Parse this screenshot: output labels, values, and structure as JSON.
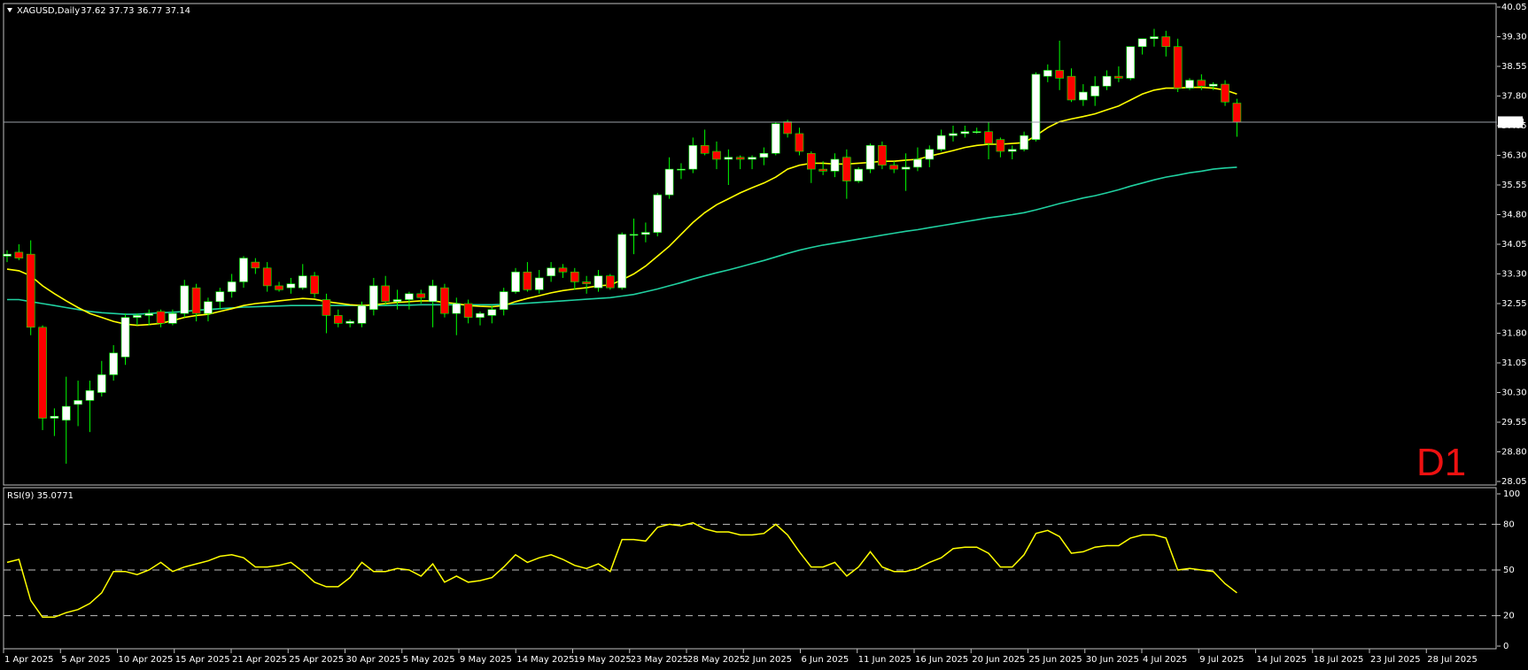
{
  "chart_data": [
    {
      "type": "candlestick",
      "symbol": "XAGUSD,Daily",
      "ohlc_header": "37.62 37.73 36.77 37.14",
      "timeframe_label": "D1",
      "last_price_label": "37.14",
      "y_ticks": [
        "40.05",
        "39.30",
        "38.55",
        "37.80",
        "37.05",
        "36.30",
        "35.55",
        "34.80",
        "34.05",
        "33.30",
        "32.55",
        "31.80",
        "31.05",
        "30.30",
        "29.55",
        "28.80",
        "28.05"
      ],
      "ylim": [
        28.05,
        40.05
      ],
      "x_labels": [
        "1 Apr 2025",
        "5 Apr 2025",
        "10 Apr 2025",
        "15 Apr 2025",
        "21 Apr 2025",
        "25 Apr 2025",
        "30 Apr 2025",
        "5 May 2025",
        "9 May 2025",
        "14 May 2025",
        "19 May 2025",
        "23 May 2025",
        "28 May 2025",
        "2 Jun 2025",
        "6 Jun 2025",
        "11 Jun 2025",
        "16 Jun 2025",
        "20 Jun 2025",
        "25 Jun 2025",
        "30 Jun 2025",
        "4 Jul 2025",
        "9 Jul 2025",
        "14 Jul 2025",
        "18 Jul 2025",
        "23 Jul 2025",
        "28 Jul 2025"
      ],
      "bull_color": "#ffffff",
      "bear_color": "#ff0000",
      "wick_color": "#00ff00",
      "candles": [
        [
          33.75,
          33.9,
          33.6,
          33.8
        ],
        [
          33.85,
          34.05,
          33.65,
          33.7
        ],
        [
          33.8,
          34.15,
          31.75,
          31.95
        ],
        [
          31.95,
          32.0,
          29.35,
          29.65
        ],
        [
          29.65,
          29.9,
          29.2,
          29.7
        ],
        [
          29.6,
          30.7,
          28.5,
          29.95
        ],
        [
          30.0,
          30.6,
          29.45,
          30.1
        ],
        [
          30.1,
          30.6,
          29.3,
          30.35
        ],
        [
          30.3,
          31.1,
          30.2,
          30.75
        ],
        [
          30.75,
          31.5,
          30.6,
          31.3
        ],
        [
          31.2,
          32.3,
          31.0,
          32.2
        ],
        [
          32.2,
          32.3,
          32.0,
          32.25
        ],
        [
          32.25,
          32.4,
          32.0,
          32.3
        ],
        [
          32.35,
          32.4,
          31.95,
          32.05
        ],
        [
          32.05,
          32.4,
          32.0,
          32.3
        ],
        [
          32.3,
          33.15,
          32.2,
          33.0
        ],
        [
          32.95,
          33.05,
          32.1,
          32.3
        ],
        [
          32.3,
          32.7,
          32.1,
          32.6
        ],
        [
          32.6,
          32.95,
          32.4,
          32.85
        ],
        [
          32.85,
          33.3,
          32.7,
          33.1
        ],
        [
          33.1,
          33.75,
          32.95,
          33.7
        ],
        [
          33.6,
          33.7,
          33.3,
          33.45
        ],
        [
          33.45,
          33.6,
          32.85,
          33.0
        ],
        [
          33.0,
          33.1,
          32.85,
          32.9
        ],
        [
          32.95,
          33.2,
          32.8,
          33.05
        ],
        [
          32.95,
          33.55,
          32.9,
          33.25
        ],
        [
          33.25,
          33.35,
          32.7,
          32.8
        ],
        [
          32.65,
          32.8,
          31.8,
          32.25
        ],
        [
          32.25,
          32.4,
          31.95,
          32.05
        ],
        [
          32.05,
          32.15,
          31.95,
          32.1
        ],
        [
          32.05,
          32.6,
          31.95,
          32.5
        ],
        [
          32.4,
          33.2,
          32.25,
          33.0
        ],
        [
          33.0,
          33.25,
          32.5,
          32.6
        ],
        [
          32.6,
          32.9,
          32.4,
          32.65
        ],
        [
          32.65,
          32.85,
          32.4,
          32.8
        ],
        [
          32.8,
          32.9,
          32.55,
          32.7
        ],
        [
          32.6,
          33.15,
          31.95,
          33.0
        ],
        [
          32.95,
          33.05,
          32.2,
          32.3
        ],
        [
          32.3,
          32.7,
          31.75,
          32.55
        ],
        [
          32.55,
          32.65,
          32.05,
          32.2
        ],
        [
          32.2,
          32.35,
          32.0,
          32.3
        ],
        [
          32.25,
          32.5,
          32.05,
          32.4
        ],
        [
          32.4,
          32.95,
          32.25,
          32.85
        ],
        [
          32.85,
          33.45,
          32.8,
          33.35
        ],
        [
          33.35,
          33.6,
          32.85,
          32.9
        ],
        [
          32.9,
          33.4,
          32.8,
          33.2
        ],
        [
          33.25,
          33.6,
          33.1,
          33.45
        ],
        [
          33.45,
          33.55,
          33.2,
          33.35
        ],
        [
          33.35,
          33.45,
          32.9,
          33.1
        ],
        [
          33.1,
          33.25,
          32.8,
          33.05
        ],
        [
          32.95,
          33.4,
          32.85,
          33.25
        ],
        [
          33.25,
          33.3,
          32.9,
          32.95
        ],
        [
          32.95,
          34.35,
          32.9,
          34.3
        ],
        [
          34.3,
          34.7,
          33.8,
          34.3
        ],
        [
          34.3,
          34.6,
          34.1,
          34.35
        ],
        [
          34.35,
          35.35,
          34.25,
          35.3
        ],
        [
          35.3,
          36.25,
          35.2,
          35.95
        ],
        [
          35.95,
          36.1,
          35.7,
          35.95
        ],
        [
          35.95,
          36.75,
          35.85,
          36.55
        ],
        [
          36.55,
          36.95,
          36.3,
          36.35
        ],
        [
          36.4,
          36.65,
          35.95,
          36.2
        ],
        [
          36.2,
          36.45,
          35.55,
          36.25
        ],
        [
          36.25,
          36.3,
          35.95,
          36.2
        ],
        [
          36.2,
          36.3,
          35.95,
          36.25
        ],
        [
          36.25,
          36.5,
          36.05,
          36.35
        ],
        [
          36.35,
          37.15,
          36.3,
          37.1
        ],
        [
          37.15,
          37.2,
          36.75,
          36.85
        ],
        [
          36.85,
          37.0,
          36.3,
          36.4
        ],
        [
          36.35,
          36.4,
          35.6,
          35.95
        ],
        [
          35.95,
          36.15,
          35.8,
          35.9
        ],
        [
          35.9,
          36.35,
          35.75,
          36.2
        ],
        [
          36.25,
          36.45,
          35.2,
          35.65
        ],
        [
          35.65,
          36.0,
          35.6,
          35.95
        ],
        [
          35.95,
          36.6,
          35.85,
          36.55
        ],
        [
          36.55,
          36.65,
          35.95,
          36.05
        ],
        [
          36.05,
          36.15,
          35.85,
          35.95
        ],
        [
          35.95,
          36.35,
          35.4,
          36.0
        ],
        [
          36.0,
          36.5,
          35.9,
          36.2
        ],
        [
          36.2,
          36.55,
          36.0,
          36.45
        ],
        [
          36.45,
          36.95,
          36.4,
          36.8
        ],
        [
          36.8,
          37.05,
          36.65,
          36.85
        ],
        [
          36.85,
          37.05,
          36.75,
          36.9
        ],
        [
          36.9,
          37.0,
          36.85,
          36.9
        ],
        [
          36.9,
          37.15,
          36.2,
          36.6
        ],
        [
          36.7,
          36.75,
          36.25,
          36.4
        ],
        [
          36.4,
          36.55,
          36.2,
          36.45
        ],
        [
          36.45,
          36.9,
          36.4,
          36.8
        ],
        [
          36.7,
          38.4,
          36.65,
          38.35
        ],
        [
          38.3,
          38.6,
          38.15,
          38.45
        ],
        [
          38.45,
          39.2,
          37.95,
          38.25
        ],
        [
          38.3,
          38.5,
          37.65,
          37.7
        ],
        [
          37.7,
          38.1,
          37.55,
          37.9
        ],
        [
          37.8,
          38.3,
          37.55,
          38.05
        ],
        [
          38.05,
          38.45,
          37.95,
          38.3
        ],
        [
          38.3,
          38.55,
          38.15,
          38.25
        ],
        [
          38.25,
          39.0,
          38.2,
          39.05
        ],
        [
          39.05,
          39.25,
          38.85,
          39.25
        ],
        [
          39.25,
          39.5,
          39.05,
          39.3
        ],
        [
          39.3,
          39.45,
          38.8,
          39.05
        ],
        [
          39.05,
          39.25,
          37.9,
          38.0
        ],
        [
          38.0,
          38.25,
          37.95,
          38.2
        ],
        [
          38.2,
          38.35,
          37.95,
          38.05
        ],
        [
          38.05,
          38.15,
          37.95,
          38.1
        ],
        [
          38.1,
          38.2,
          37.55,
          37.65
        ],
        [
          37.62,
          37.73,
          36.77,
          37.14
        ]
      ],
      "ma_fast": [
        33.42,
        33.38,
        33.25,
        33.0,
        32.8,
        32.62,
        32.45,
        32.3,
        32.2,
        32.1,
        32.03,
        32.0,
        32.02,
        32.05,
        32.12,
        32.2,
        32.25,
        32.28,
        32.35,
        32.42,
        32.5,
        32.55,
        32.58,
        32.62,
        32.65,
        32.68,
        32.66,
        32.6,
        32.56,
        32.52,
        32.5,
        32.52,
        32.55,
        32.58,
        32.6,
        32.62,
        32.62,
        32.58,
        32.55,
        32.5,
        32.48,
        32.47,
        32.5,
        32.6,
        32.68,
        32.75,
        32.82,
        32.88,
        32.92,
        32.95,
        33.0,
        33.02,
        33.15,
        33.3,
        33.5,
        33.75,
        34.0,
        34.3,
        34.6,
        34.85,
        35.05,
        35.2,
        35.35,
        35.48,
        35.6,
        35.75,
        35.95,
        36.05,
        36.1,
        36.1,
        36.08,
        36.08,
        36.1,
        36.12,
        36.15,
        36.15,
        36.18,
        36.2,
        36.28,
        36.35,
        36.42,
        36.5,
        36.55,
        36.58,
        36.58,
        36.6,
        36.62,
        36.8,
        37.0,
        37.15,
        37.22,
        37.28,
        37.35,
        37.45,
        37.55,
        37.7,
        37.85,
        37.95,
        38.0,
        38.0,
        38.02,
        38.02,
        38.0,
        37.95,
        37.85
      ],
      "ma_slow": [
        32.65,
        32.65,
        32.6,
        32.55,
        32.5,
        32.45,
        32.4,
        32.35,
        32.32,
        32.3,
        32.28,
        32.28,
        32.3,
        32.32,
        32.33,
        32.35,
        32.38,
        32.4,
        32.42,
        32.44,
        32.46,
        32.47,
        32.48,
        32.49,
        32.5,
        32.5,
        32.5,
        32.5,
        32.5,
        32.5,
        32.5,
        32.5,
        32.5,
        32.51,
        32.51,
        32.52,
        32.52,
        32.52,
        32.52,
        32.52,
        32.52,
        32.52,
        32.53,
        32.54,
        32.56,
        32.58,
        32.6,
        32.62,
        32.64,
        32.66,
        32.68,
        32.7,
        32.74,
        32.78,
        32.85,
        32.92,
        33.0,
        33.08,
        33.17,
        33.25,
        33.33,
        33.4,
        33.48,
        33.56,
        33.64,
        33.73,
        33.82,
        33.9,
        33.97,
        34.03,
        34.08,
        34.13,
        34.18,
        34.23,
        34.28,
        34.33,
        34.38,
        34.42,
        34.47,
        34.52,
        34.57,
        34.62,
        34.67,
        34.72,
        34.76,
        34.8,
        34.85,
        34.92,
        35.0,
        35.08,
        35.15,
        35.22,
        35.28,
        35.35,
        35.43,
        35.52,
        35.6,
        35.68,
        35.75,
        35.8,
        35.86,
        35.9,
        35.95,
        35.98,
        36.0
      ],
      "ma_fast_color": "#ffff00",
      "ma_slow_color": "#20d0a0"
    },
    {
      "type": "line",
      "name": "RSI(9) 35.0771",
      "ylim": [
        0,
        100
      ],
      "levels": [
        80,
        50,
        20
      ],
      "y_ticks": [
        "100",
        "80",
        "50",
        "20",
        "0"
      ],
      "color": "#ffff00",
      "values": [
        55,
        57,
        30,
        19,
        19,
        22,
        24,
        28,
        35,
        49,
        49,
        47,
        50,
        55,
        49,
        52,
        54,
        56,
        59,
        60,
        58,
        52,
        52,
        53,
        55,
        49,
        42,
        39,
        39,
        45,
        55,
        49,
        49,
        51,
        50,
        46,
        54,
        42,
        46,
        42,
        43,
        45,
        52,
        60,
        55,
        58,
        60,
        57,
        53,
        51,
        54,
        49,
        70,
        70,
        69,
        78,
        80,
        79,
        81,
        77,
        75,
        75,
        73,
        73,
        74,
        80,
        73,
        62,
        52,
        52,
        55,
        46,
        52,
        62,
        52,
        49,
        49,
        51,
        55,
        58,
        64,
        65,
        65,
        61,
        52,
        52,
        60,
        74,
        76,
        72,
        61,
        62,
        65,
        66,
        66,
        71,
        73,
        73,
        71,
        50,
        51,
        50,
        49,
        41,
        35
      ]
    }
  ]
}
